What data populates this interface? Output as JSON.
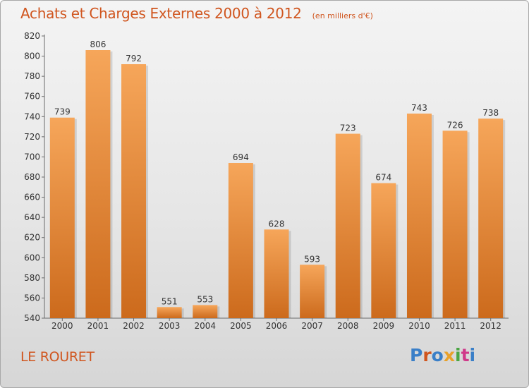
{
  "header": {
    "title": "Achats et Charges Externes 2000 à 2012",
    "unit": "(en milliers d'€)"
  },
  "footer": {
    "commune": "LE ROURET",
    "logo_text": "Proxiti",
    "logo_colors": [
      "#3a7fc8",
      "#d0551e",
      "#3a7fc8",
      "#e8a12a",
      "#4aa543",
      "#d03a8a",
      "#3a7fc8"
    ]
  },
  "colors": {
    "bar_light": "#f6a65a",
    "bar_dark": "#cc6a1c",
    "title": "#d0551e",
    "axis": "#555555"
  },
  "chart_data": {
    "type": "bar",
    "categories": [
      "2000",
      "2001",
      "2002",
      "2003",
      "2004",
      "2005",
      "2006",
      "2007",
      "2008",
      "2009",
      "2010",
      "2011",
      "2012"
    ],
    "values": [
      739,
      806,
      792,
      551,
      553,
      694,
      628,
      593,
      723,
      674,
      743,
      726,
      738
    ],
    "ylim": [
      540,
      820
    ],
    "yticks": [
      540,
      560,
      580,
      600,
      620,
      640,
      660,
      680,
      700,
      720,
      740,
      760,
      780,
      800,
      820
    ],
    "grid": false,
    "data_labels": true
  }
}
